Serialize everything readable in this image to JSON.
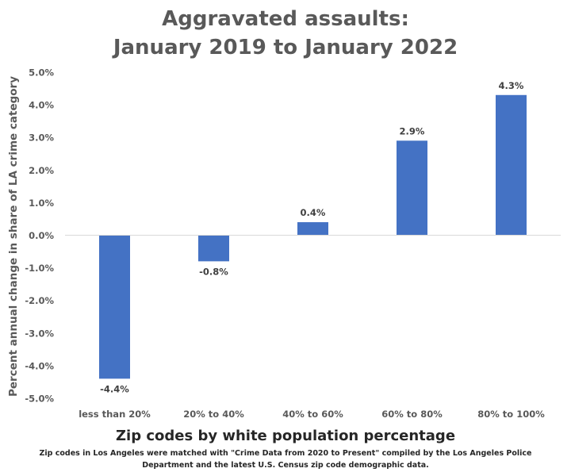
{
  "chart_data": {
    "type": "bar",
    "title_lines": [
      "Aggravated assaults:",
      "January 2019 to January 2022"
    ],
    "xlabel": "Zip codes by white population percentage",
    "ylabel": "Percent annual change in share of LA crime category",
    "categories": [
      "less than 20%",
      "20% to 40%",
      "40% to 60%",
      "60% to 80%",
      "80% to 100%"
    ],
    "values": [
      -4.4,
      -0.8,
      0.4,
      2.9,
      4.3
    ],
    "data_labels": [
      "-4.4%",
      "-0.8%",
      "0.4%",
      "2.9%",
      "4.3%"
    ],
    "ylim": [
      -5.0,
      5.0
    ],
    "yticks": [
      5.0,
      4.0,
      3.0,
      2.0,
      1.0,
      0.0,
      -1.0,
      -2.0,
      -3.0,
      -4.0,
      -5.0
    ],
    "ytick_labels": [
      "5.0%",
      "4.0%",
      "3.0%",
      "2.0%",
      "1.0%",
      "0.0%",
      "-1.0%",
      "-2.0%",
      "-3.0%",
      "-4.0%",
      "-5.0%"
    ],
    "grid": false,
    "legend": "none",
    "bar_color": "#4472C4",
    "footnote_lines": [
      "Zip codes in Los Angeles were matched with \"Crime Data from 2020 to Present\" compiled by the Los Angeles Police",
      "Department and the latest U.S. Census zip code demographic data."
    ]
  }
}
